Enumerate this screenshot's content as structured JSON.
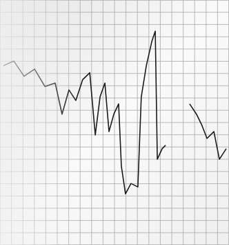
{
  "chart_data": {
    "type": "line",
    "x": [
      1.5,
      6.0,
      10.5,
      15.1,
      19.6,
      24.1,
      27.1,
      30.1,
      33.1,
      36.1,
      39.2,
      41.6,
      43.7,
      45.8,
      47.6,
      49.7,
      51.8,
      53.0,
      54.8,
      57.2,
      60.2,
      61.7,
      63.9,
      66.3,
      67.8,
      68.7,
      70.8,
      72.3,
      75.3,
      82.8,
      85.8,
      88.0,
      90.4,
      93.4,
      95.8,
      98.8
    ],
    "series": [
      {
        "color": "#1a1a1a",
        "line_style": "solid",
        "values": [
          73.2,
          75.1,
          68.9,
          71.8,
          64.7,
          66.1,
          53.4,
          63.3,
          59.0,
          67.5,
          70.3,
          44.9,
          60.5,
          66.1,
          46.3,
          53.4,
          57.6,
          32.2,
          20.9,
          25.1,
          23.7,
          60.5,
          73.2,
          83.1,
          87.3,
          35.0,
          39.3,
          40.7,
          null,
          57.6,
          53.4,
          49.2,
          43.5,
          46.3,
          35.0,
          39.3
        ]
      }
    ],
    "xlim": [
      0,
      100
    ],
    "ylim": [
      0,
      100
    ],
    "xticks": [
      0,
      5,
      10,
      15,
      20,
      25,
      30,
      35,
      40,
      45,
      50,
      55,
      60,
      65,
      70,
      75,
      80,
      85,
      90,
      95,
      100
    ],
    "yticks": [
      0,
      5,
      10,
      15,
      20,
      25,
      30,
      35,
      40,
      45,
      50,
      55,
      60,
      65,
      70,
      75,
      80,
      85,
      90,
      95,
      100
    ],
    "grid": true,
    "tick_labels": false
  }
}
